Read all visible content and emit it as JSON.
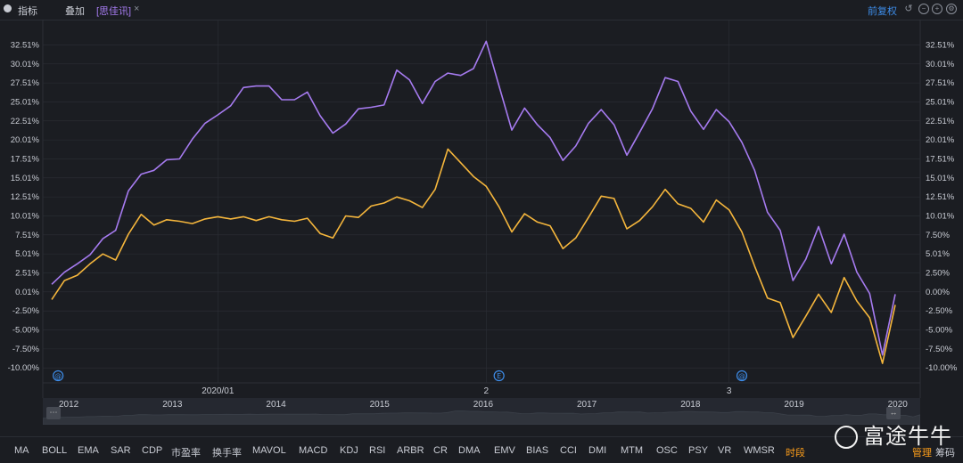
{
  "topbar": {
    "indicator_label": "指标",
    "overlay_label": "叠加",
    "overlay_stock": "[思佳讯]",
    "close_symbol": "×",
    "adjust_label": "前复权"
  },
  "colors": {
    "background": "#1b1d22",
    "grid": "#2c2f36",
    "main_line": "#f5b63c",
    "overlay_line": "#a67bf0",
    "text": "#c9ccd4",
    "accent": "#3d8ce8",
    "active_tab": "#ff9f1a"
  },
  "chart_data": {
    "type": "line",
    "ylim": [
      -11.5,
      33.5
    ],
    "y_ticks": [
      32.51,
      30.01,
      27.51,
      25.01,
      22.51,
      20.01,
      17.51,
      15.01,
      12.51,
      10.01,
      7.51,
      5.01,
      2.51,
      0.01,
      -2.5,
      -5.0,
      -7.5,
      -10.0
    ],
    "y_tick_labels": [
      "32.51%",
      "30.01%",
      "27.51%",
      "25.01%",
      "22.51%",
      "20.01%",
      "17.51%",
      "15.01%",
      "12.51%",
      "10.01%",
      "7.51%",
      "5.01%",
      "2.51%",
      "0.01%",
      "-2.50%",
      "-5.00%",
      "-7.50%",
      "-10.00%"
    ],
    "right_tick_labels": [
      "32.51%",
      "30.01%",
      "27.51%",
      "25.01%",
      "22.51%",
      "20.01%",
      "17.51%",
      "15.01%",
      "12.51%",
      "10.01%",
      "7.50%",
      "5.01%",
      "2.50%",
      "0.00%",
      "-2.50%",
      "-5.00%",
      "-7.50%",
      "-10.00%"
    ],
    "x_labels": [
      {
        "label": "2020/01",
        "index": 13
      },
      {
        "label": "2",
        "index": 34
      },
      {
        "label": "3",
        "index": 53
      }
    ],
    "event_markers": [
      {
        "symbol": "@",
        "index": 0.5
      },
      {
        "symbol": "E",
        "index": 35
      },
      {
        "symbol": "@",
        "index": 54
      }
    ],
    "series": [
      {
        "name": "main",
        "color": "#f5b63c",
        "values": [
          -1.0,
          1.5,
          2.2,
          3.7,
          5.0,
          4.2,
          7.6,
          10.2,
          8.8,
          9.5,
          9.3,
          9.0,
          9.6,
          9.9,
          9.6,
          9.9,
          9.4,
          9.9,
          9.5,
          9.3,
          9.7,
          7.7,
          7.1,
          10.0,
          9.8,
          11.3,
          11.7,
          12.5,
          12.0,
          11.1,
          13.5,
          18.8,
          17.0,
          15.2,
          13.9,
          11.2,
          7.9,
          10.3,
          9.2,
          8.7,
          5.7,
          7.1,
          9.8,
          12.6,
          12.3,
          8.3,
          9.4,
          11.2,
          13.5,
          11.6,
          11.0,
          9.2,
          12.1,
          10.8,
          7.9,
          3.4,
          -0.8,
          -1.4,
          -6.0,
          -3.2,
          -0.3,
          -2.7,
          1.9,
          -1.2,
          -3.4,
          -9.4,
          -1.7
        ]
      },
      {
        "name": "思佳讯",
        "color": "#a67bf0",
        "values": [
          1.0,
          2.6,
          3.7,
          4.9,
          7.0,
          8.1,
          13.3,
          15.5,
          16.0,
          17.4,
          17.5,
          20.1,
          22.2,
          23.3,
          24.5,
          26.9,
          27.1,
          27.1,
          25.3,
          25.3,
          26.3,
          23.2,
          20.9,
          22.1,
          24.1,
          24.3,
          24.6,
          29.2,
          27.9,
          24.8,
          27.7,
          28.8,
          28.5,
          29.4,
          33.0,
          27.1,
          21.3,
          24.2,
          22.0,
          20.3,
          17.3,
          19.2,
          22.2,
          24.0,
          22.0,
          18.0,
          21.0,
          24.1,
          28.2,
          27.7,
          23.8,
          21.4,
          24.0,
          22.4,
          19.7,
          16.0,
          10.5,
          8.1,
          1.5,
          4.3,
          8.6,
          3.7,
          7.6,
          2.6,
          -0.2,
          -8.3,
          -0.3
        ]
      }
    ]
  },
  "navigator": {
    "years": [
      "2012",
      "2013",
      "2014",
      "2015",
      "2016",
      "2017",
      "2018",
      "2019",
      "2020"
    ],
    "handle_left": "⋯",
    "handle_right": "↔"
  },
  "indicators": {
    "tabs": [
      "MA",
      "BOLL",
      "EMA",
      "SAR",
      "CDP",
      "市盈率",
      "换手率",
      "MAVOL",
      "MACD",
      "KDJ",
      "RSI",
      "ARBR",
      "CR",
      "DMA",
      "EMV",
      "BIAS",
      "CCI",
      "DMI",
      "MTM",
      "OSC",
      "PSY",
      "VR",
      "WMSR",
      "时段"
    ],
    "manage_label": "管理",
    "chip_label": "筹码"
  },
  "brand": {
    "name": "富途牛牛"
  }
}
